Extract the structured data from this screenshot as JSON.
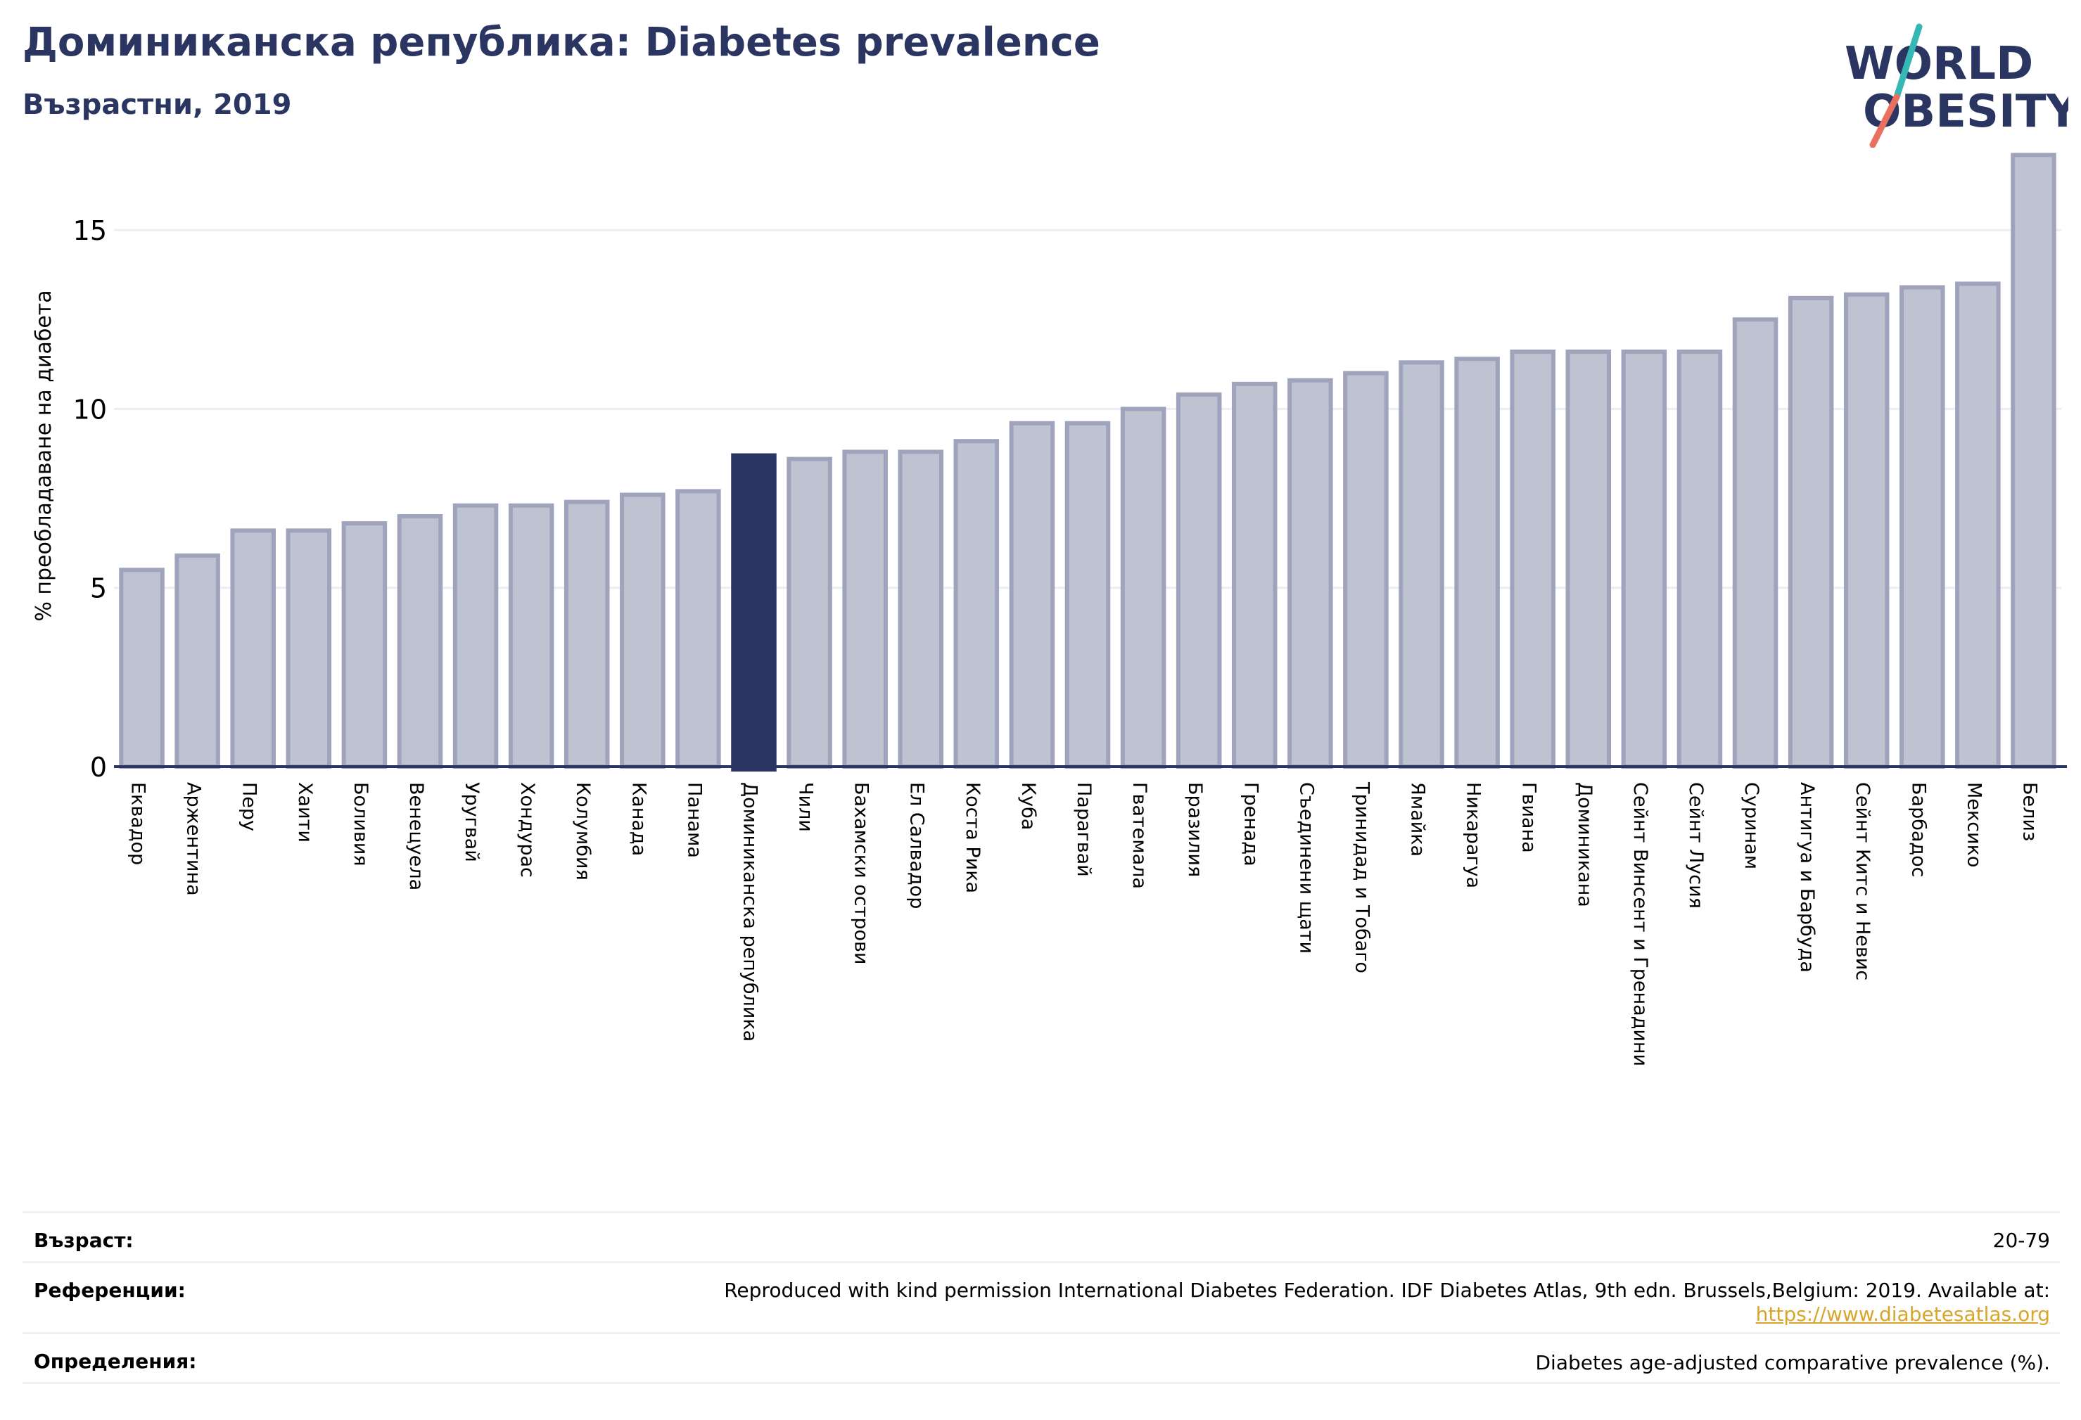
{
  "header": {
    "title": "Доминиканска република: Diabetes prevalence",
    "subtitle": "Възрастни, 2019"
  },
  "logo": {
    "line1": "WORLD",
    "line2": "OBESITY"
  },
  "colors": {
    "bar": "#bfc2d0",
    "bar_stroke": "#9fa3bc",
    "highlight": "#2a3561",
    "title": "#2a3561",
    "grid": "#eceef3",
    "axis": "#2a3561",
    "logo_teal": "#35b8b5",
    "logo_red": "#e8705f",
    "link": "#d7a62a"
  },
  "chart_data": {
    "type": "bar",
    "ylabel": "% преобладаване на диабета",
    "ylim": [
      0,
      17.5
    ],
    "yticks": [
      0,
      5,
      10,
      15
    ],
    "grid": true,
    "highlight": "Доминиканска република",
    "categories": [
      "Еквадор",
      "Аржентина",
      "Перу",
      "Хаити",
      "Боливия",
      "Венецуела",
      "Уругвай",
      "Хондурас",
      "Колумбия",
      "Канада",
      "Панама",
      "Доминиканска република",
      "Чили",
      "Бахамски острови",
      "Ел Салвадор",
      "Коста Рика",
      "Куба",
      "Парагвай",
      "Гватемала",
      "Бразилия",
      "Гренада",
      "Съединени щати",
      "Тринидад и Тобаго",
      "Ямайка",
      "Никарагуа",
      "Гвиана",
      "Доминикана",
      "Сейнт Винсент и Гренадини",
      "Сейнт Лусия",
      "Суринам",
      "Антигуа и Барбуда",
      "Сейнт Китс и Невис",
      "Барбадос",
      "Мексико",
      "Белиз"
    ],
    "values": [
      5.5,
      5.9,
      6.6,
      6.6,
      6.8,
      7.0,
      7.3,
      7.3,
      7.4,
      7.6,
      7.7,
      8.7,
      8.6,
      8.8,
      8.8,
      9.1,
      9.6,
      9.6,
      10.0,
      10.4,
      10.7,
      10.8,
      11.0,
      11.3,
      11.4,
      11.6,
      11.6,
      11.6,
      11.6,
      12.5,
      13.1,
      13.2,
      13.4,
      13.5,
      17.1
    ]
  },
  "footer": {
    "age_label": "Възраст:",
    "age_value": "20-79",
    "ref_label": "Референции:",
    "ref_text": "Reproduced with kind permission International Diabetes Federation. IDF Diabetes Atlas, 9th edn. Brussels,Belgium: 2019. Available at:",
    "ref_link": "https://www.diabetesatlas.org",
    "def_label": "Определения:",
    "def_text": "Diabetes age-adjusted comparative prevalence (%)."
  }
}
